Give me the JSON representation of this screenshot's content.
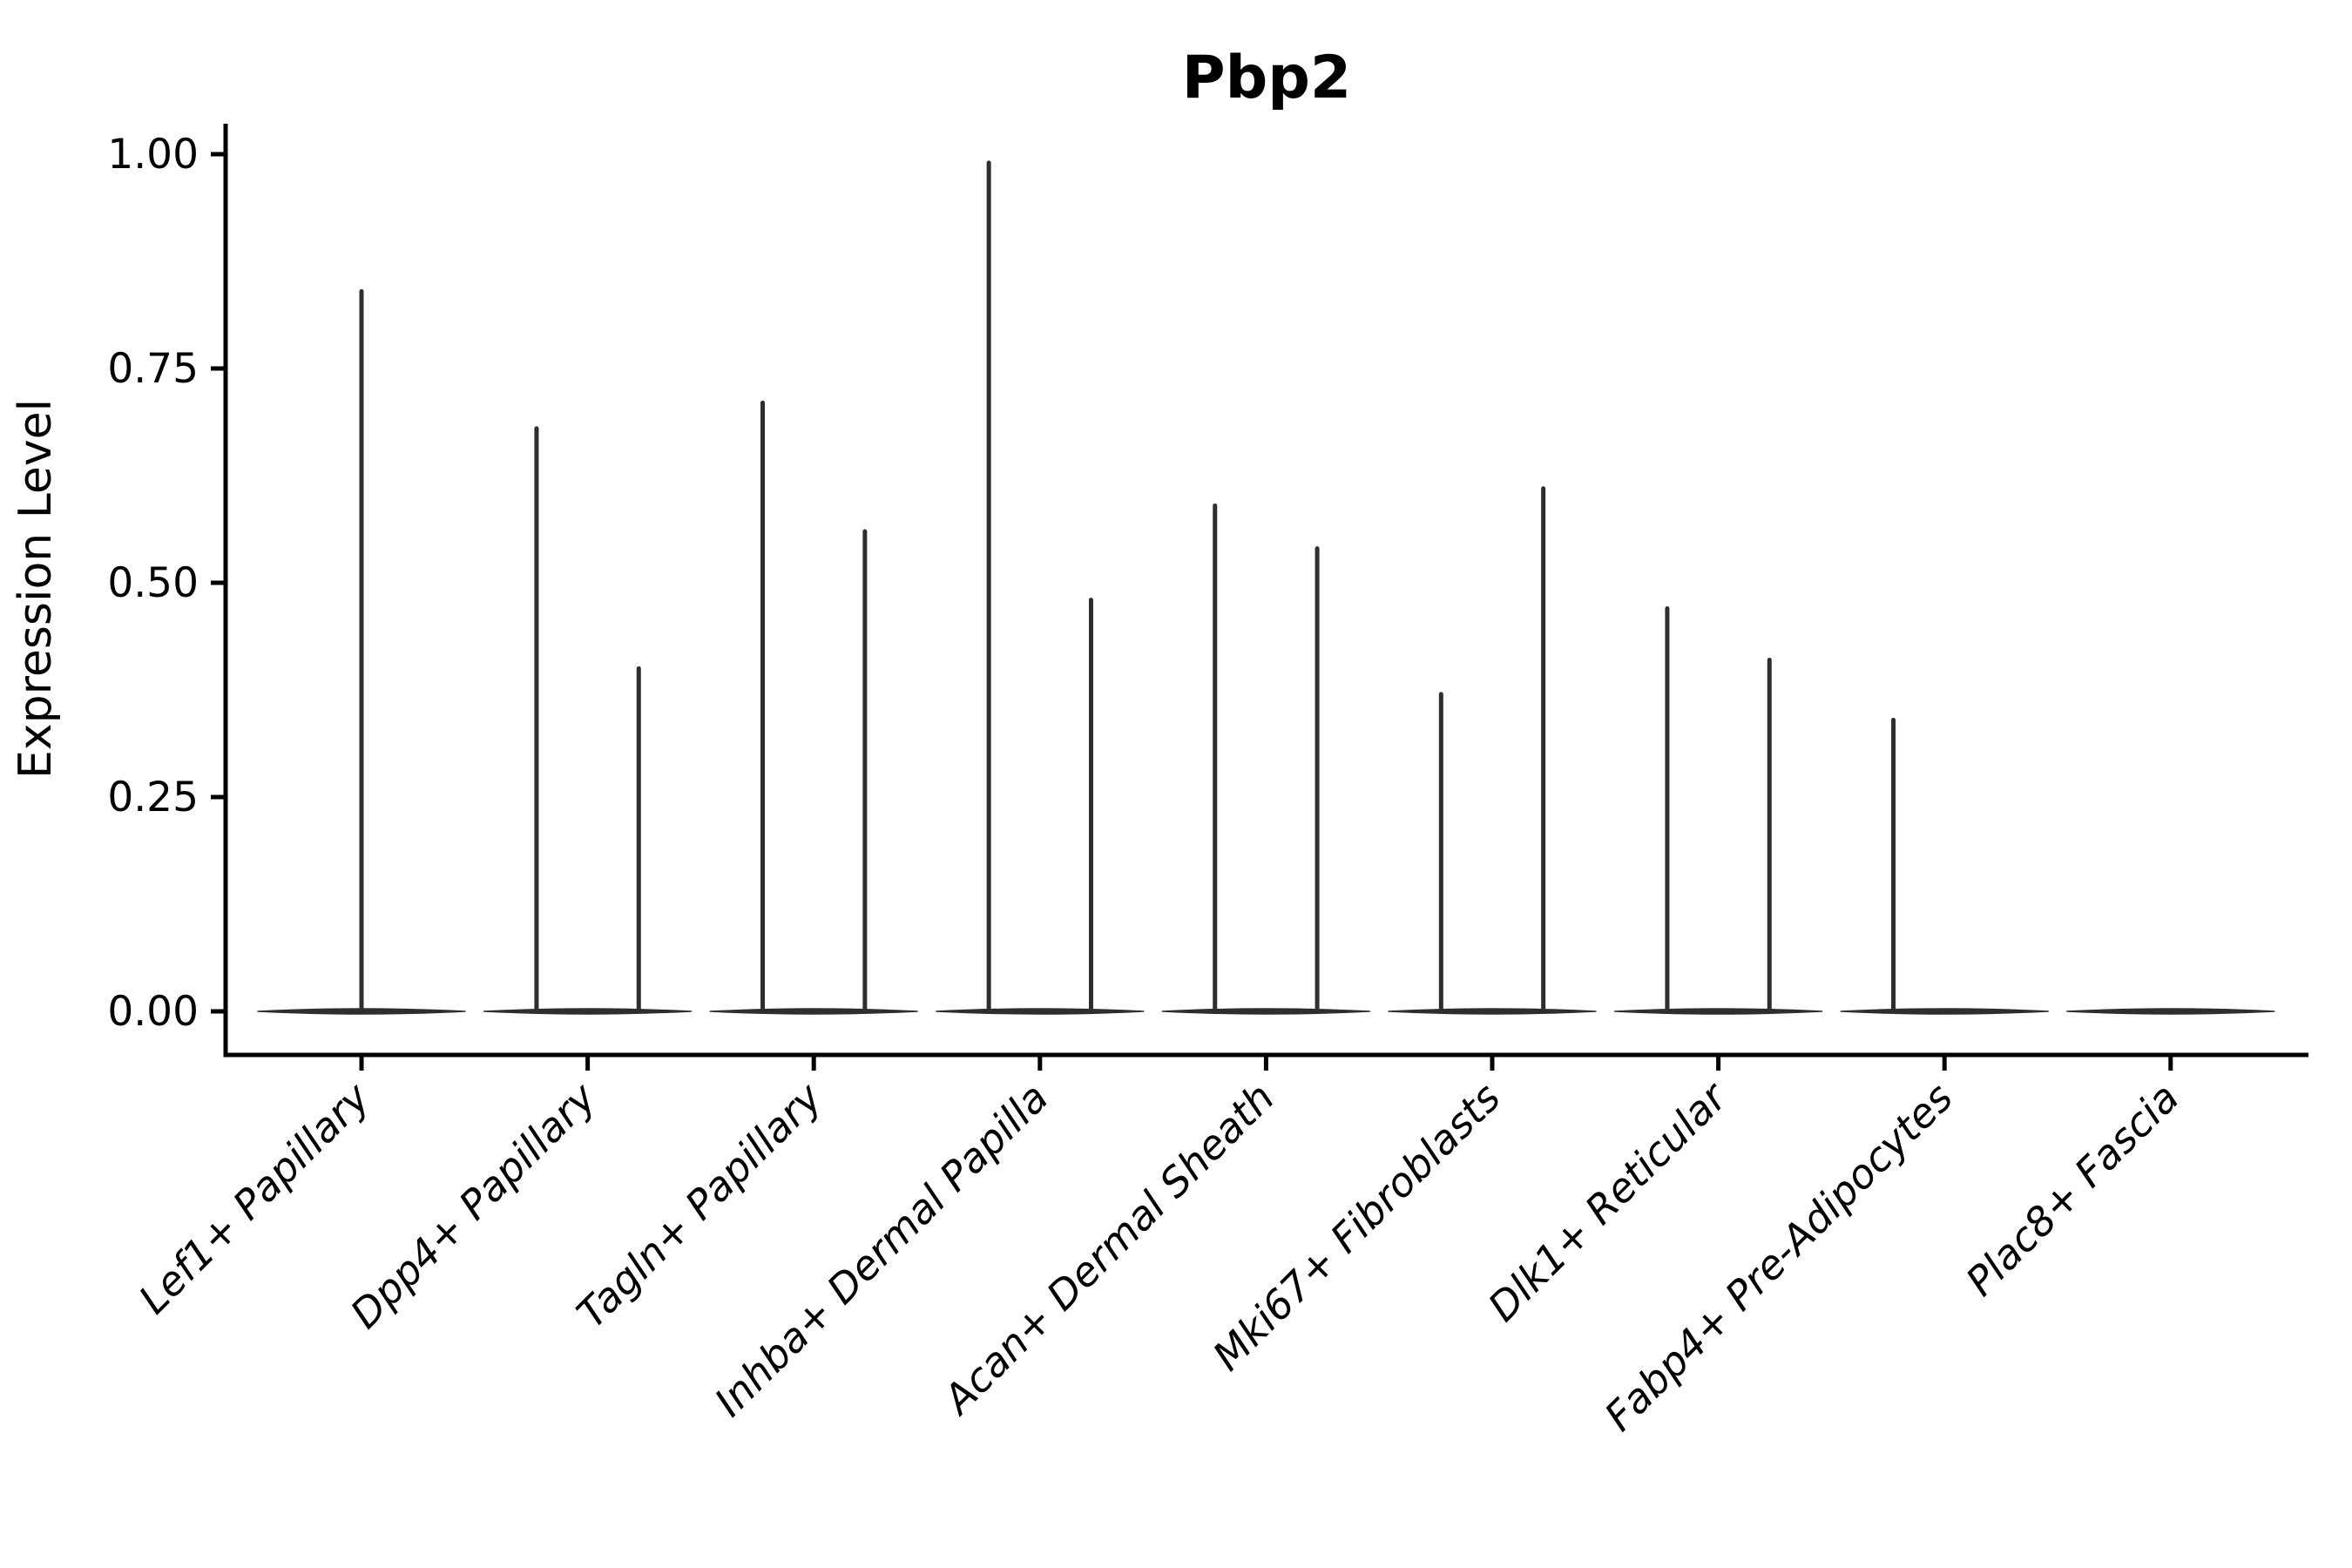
{
  "chart_data": {
    "type": "violin",
    "title": "Pbp2",
    "xlabel": "",
    "ylabel": "Expression Level",
    "ylim": [
      -0.05,
      1.04
    ],
    "yticks": [
      {
        "value": 0.0,
        "label": "0.00"
      },
      {
        "value": 0.25,
        "label": "0.25"
      },
      {
        "value": 0.5,
        "label": "0.50"
      },
      {
        "value": 0.75,
        "label": "0.75"
      },
      {
        "value": 1.0,
        "label": "1.00"
      }
    ],
    "grid": false,
    "legend": "none",
    "x_label_rotation_deg": -45,
    "x_label_style": "italic",
    "categories": [
      "Lef1+ Papillary",
      "Dpp4+ Papillary",
      "Tagln+ Papillary",
      "Inhba+ Dermal Papilla",
      "Acan+ Dermal Sheath",
      "Mki67+ Fibroblasts",
      "Dlk1+ Reticular",
      "Fabp4+ Pre-Adipocytes",
      "Plac8+ Fascia"
    ],
    "violin_groups": [
      {
        "category": "Lef1+ Papillary",
        "baseline_value": 0,
        "spikes": [
          {
            "offset": 0.0,
            "max": 0.84
          }
        ]
      },
      {
        "category": "Dpp4+ Papillary",
        "baseline_value": 0,
        "spikes": [
          {
            "offset": -0.226,
            "max": 0.68
          },
          {
            "offset": 0.226,
            "max": 0.4
          }
        ]
      },
      {
        "category": "Tagln+ Papillary",
        "baseline_value": 0,
        "spikes": [
          {
            "offset": -0.226,
            "max": 0.71
          },
          {
            "offset": 0.226,
            "max": 0.56
          }
        ]
      },
      {
        "category": "Inhba+ Dermal Papilla",
        "baseline_value": 0,
        "spikes": [
          {
            "offset": -0.226,
            "max": 0.99
          },
          {
            "offset": 0.226,
            "max": 0.48
          }
        ]
      },
      {
        "category": "Acan+ Dermal Sheath",
        "baseline_value": 0,
        "spikes": [
          {
            "offset": -0.226,
            "max": 0.59
          },
          {
            "offset": 0.226,
            "max": 0.54
          }
        ]
      },
      {
        "category": "Mki67+ Fibroblasts",
        "baseline_value": 0,
        "spikes": [
          {
            "offset": -0.226,
            "max": 0.37
          },
          {
            "offset": 0.226,
            "max": 0.61
          }
        ]
      },
      {
        "category": "Dlk1+ Reticular",
        "baseline_value": 0,
        "spikes": [
          {
            "offset": -0.226,
            "max": 0.47
          },
          {
            "offset": 0.226,
            "max": 0.41
          }
        ]
      },
      {
        "category": "Fabp4+ Pre-Adipocytes",
        "baseline_value": 0,
        "spikes": [
          {
            "offset": -0.226,
            "max": 0.34
          }
        ]
      },
      {
        "category": "Plac8+ Fascia",
        "baseline_value": 0,
        "spikes": []
      }
    ],
    "colors": {
      "violin": "#2e2e2e",
      "axis": "#000000",
      "text": "#000000",
      "background": "#ffffff"
    }
  }
}
